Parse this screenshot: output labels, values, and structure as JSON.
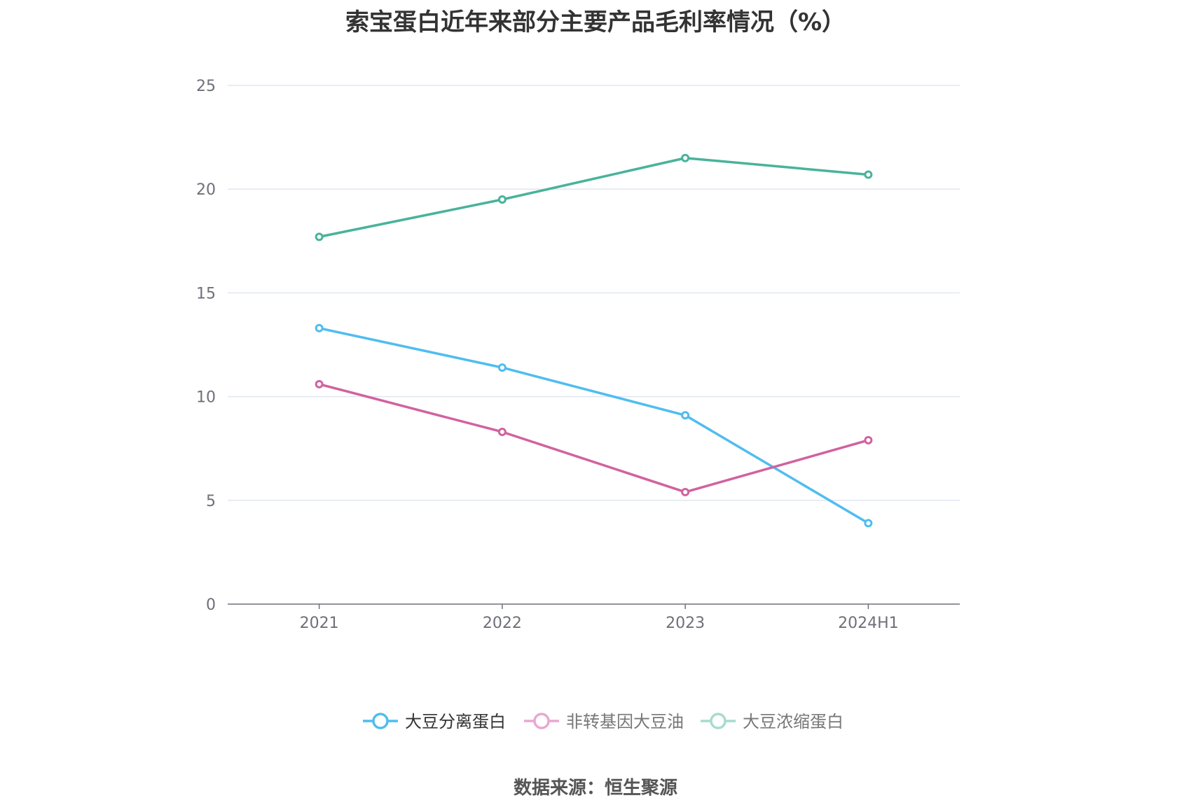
{
  "chart_data": {
    "type": "line",
    "title": "索宝蛋白近年来部分主要产品毛利率情况（%）",
    "categories": [
      "2021",
      "2022",
      "2023",
      "2024H1"
    ],
    "series": [
      {
        "name": "大豆分离蛋白",
        "values": [
          13.3,
          11.4,
          9.1,
          3.9
        ],
        "color": "#4fbdf0"
      },
      {
        "name": "非转基因大豆油",
        "values": [
          10.6,
          8.3,
          5.4,
          7.9
        ],
        "color": "#d1629f"
      },
      {
        "name": "大豆浓缩蛋白",
        "values": [
          17.7,
          19.5,
          21.5,
          20.7
        ],
        "color": "#48b39a"
      }
    ],
    "yticks": [
      "0",
      "5",
      "10",
      "15",
      "20",
      "25"
    ],
    "ylim": [
      0,
      25
    ],
    "grid": true,
    "legend_position": "bottom",
    "legend_muted_colors": [
      "#4fbdf0",
      "#e8a8d0",
      "#a5dccd"
    ],
    "source": "数据来源：恒生聚源"
  }
}
